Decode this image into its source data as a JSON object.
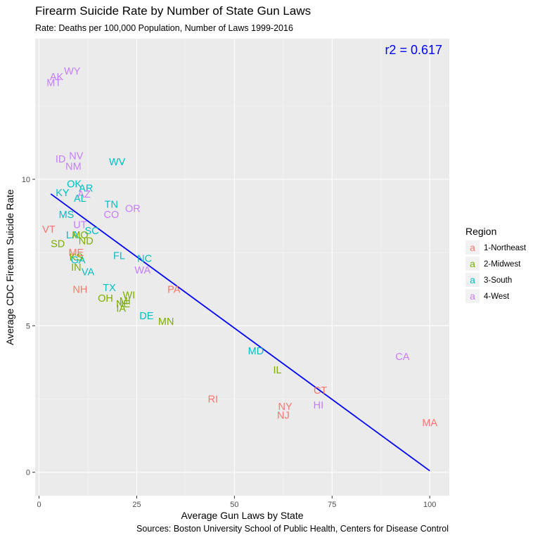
{
  "chart_data": {
    "type": "scatter",
    "title": "Firearm Suicide Rate by Number of State Gun Laws",
    "subtitle": "Rate: Deaths per 100,000 Population, Number of Laws 1999-2016",
    "xlabel": "Average Gun Laws by State",
    "ylabel": "Average CDC Firearm Suicide Rate",
    "source": "Sources: Boston University School of Public Health, Centers for Disease Control",
    "xlim": [
      -1,
      105
    ],
    "ylim": [
      -0.8,
      14.8
    ],
    "x_ticks": [
      0,
      25,
      50,
      75,
      100
    ],
    "y_ticks": [
      0,
      5,
      10
    ],
    "annotation": "r2 =  0.617",
    "regression": {
      "x": [
        3,
        100
      ],
      "y": [
        9.5,
        0.05
      ],
      "color": "#0000ff"
    },
    "legend": {
      "title": "Region",
      "items": [
        {
          "name": "1-Northeast",
          "color": "#f8766d"
        },
        {
          "name": "2-Midwest",
          "color": "#7cae00"
        },
        {
          "name": "3-South",
          "color": "#00bfc4"
        },
        {
          "name": "4-West",
          "color": "#c77cff"
        }
      ]
    },
    "points": [
      {
        "label": "WY",
        "x": 8.5,
        "y": 13.7,
        "region": 4
      },
      {
        "label": "AK",
        "x": 4.5,
        "y": 13.5,
        "region": 4
      },
      {
        "label": "MT",
        "x": 3.8,
        "y": 13.3,
        "region": 4
      },
      {
        "label": "ID",
        "x": 5.5,
        "y": 10.7,
        "region": 4
      },
      {
        "label": "NV",
        "x": 9.5,
        "y": 10.8,
        "region": 4
      },
      {
        "label": "NM",
        "x": 8.8,
        "y": 10.45,
        "region": 4
      },
      {
        "label": "WV",
        "x": 20,
        "y": 10.6,
        "region": 3
      },
      {
        "label": "OK",
        "x": 9,
        "y": 9.85,
        "region": 3
      },
      {
        "label": "AR",
        "x": 12,
        "y": 9.7,
        "region": 3
      },
      {
        "label": "KY",
        "x": 6,
        "y": 9.55,
        "region": 3
      },
      {
        "label": "AZ",
        "x": 11.5,
        "y": 9.5,
        "region": 4
      },
      {
        "label": "AL",
        "x": 10.5,
        "y": 9.35,
        "region": 3
      },
      {
        "label": "TN",
        "x": 18.5,
        "y": 9.15,
        "region": 3
      },
      {
        "label": "OR",
        "x": 24,
        "y": 9.0,
        "region": 4
      },
      {
        "label": "MS",
        "x": 7,
        "y": 8.8,
        "region": 3
      },
      {
        "label": "CO",
        "x": 18.5,
        "y": 8.8,
        "region": 4
      },
      {
        "label": "UT",
        "x": 10.5,
        "y": 8.45,
        "region": 4
      },
      {
        "label": "VT",
        "x": 2.5,
        "y": 8.3,
        "region": 1
      },
      {
        "label": "SC",
        "x": 13.5,
        "y": 8.25,
        "region": 3
      },
      {
        "label": "LA",
        "x": 8.5,
        "y": 8.1,
        "region": 3
      },
      {
        "label": "MO",
        "x": 10.5,
        "y": 8.1,
        "region": 2
      },
      {
        "label": "SD",
        "x": 4.8,
        "y": 7.8,
        "region": 2
      },
      {
        "label": "ND",
        "x": 12,
        "y": 7.9,
        "region": 2
      },
      {
        "label": "ME",
        "x": 9.5,
        "y": 7.5,
        "region": 1
      },
      {
        "label": "KS",
        "x": 9.5,
        "y": 7.35,
        "region": 2
      },
      {
        "label": "FL",
        "x": 20.5,
        "y": 7.4,
        "region": 3
      },
      {
        "label": "NC",
        "x": 27,
        "y": 7.3,
        "region": 3
      },
      {
        "label": "GA",
        "x": 10,
        "y": 7.25,
        "region": 3
      },
      {
        "label": "IN",
        "x": 9.5,
        "y": 7.0,
        "region": 2
      },
      {
        "label": "WA",
        "x": 26.5,
        "y": 6.9,
        "region": 4
      },
      {
        "label": "VA",
        "x": 12.5,
        "y": 6.85,
        "region": 3
      },
      {
        "label": "PA",
        "x": 34.5,
        "y": 6.25,
        "region": 1
      },
      {
        "label": "NH",
        "x": 10.5,
        "y": 6.25,
        "region": 1
      },
      {
        "label": "TX",
        "x": 18,
        "y": 6.3,
        "region": 3
      },
      {
        "label": "WI",
        "x": 23,
        "y": 6.05,
        "region": 2
      },
      {
        "label": "OH",
        "x": 17,
        "y": 5.95,
        "region": 2
      },
      {
        "label": "MI",
        "x": 22,
        "y": 5.85,
        "region": 2
      },
      {
        "label": "NE",
        "x": 21.5,
        "y": 5.75,
        "region": 2
      },
      {
        "label": "IA",
        "x": 21,
        "y": 5.6,
        "region": 2
      },
      {
        "label": "DE",
        "x": 27.5,
        "y": 5.35,
        "region": 3
      },
      {
        "label": "MN",
        "x": 32.5,
        "y": 5.15,
        "region": 2
      },
      {
        "label": "MD",
        "x": 55.5,
        "y": 4.15,
        "region": 3
      },
      {
        "label": "CA",
        "x": 93,
        "y": 3.95,
        "region": 4
      },
      {
        "label": "IL",
        "x": 61,
        "y": 3.5,
        "region": 2
      },
      {
        "label": "CT",
        "x": 72,
        "y": 2.8,
        "region": 1
      },
      {
        "label": "RI",
        "x": 44.5,
        "y": 2.5,
        "region": 1
      },
      {
        "label": "NY",
        "x": 63,
        "y": 2.25,
        "region": 1
      },
      {
        "label": "HI",
        "x": 71.5,
        "y": 2.3,
        "region": 4
      },
      {
        "label": "NJ",
        "x": 62.5,
        "y": 1.95,
        "region": 1
      },
      {
        "label": "MA",
        "x": 100,
        "y": 1.7,
        "region": 1
      }
    ]
  }
}
